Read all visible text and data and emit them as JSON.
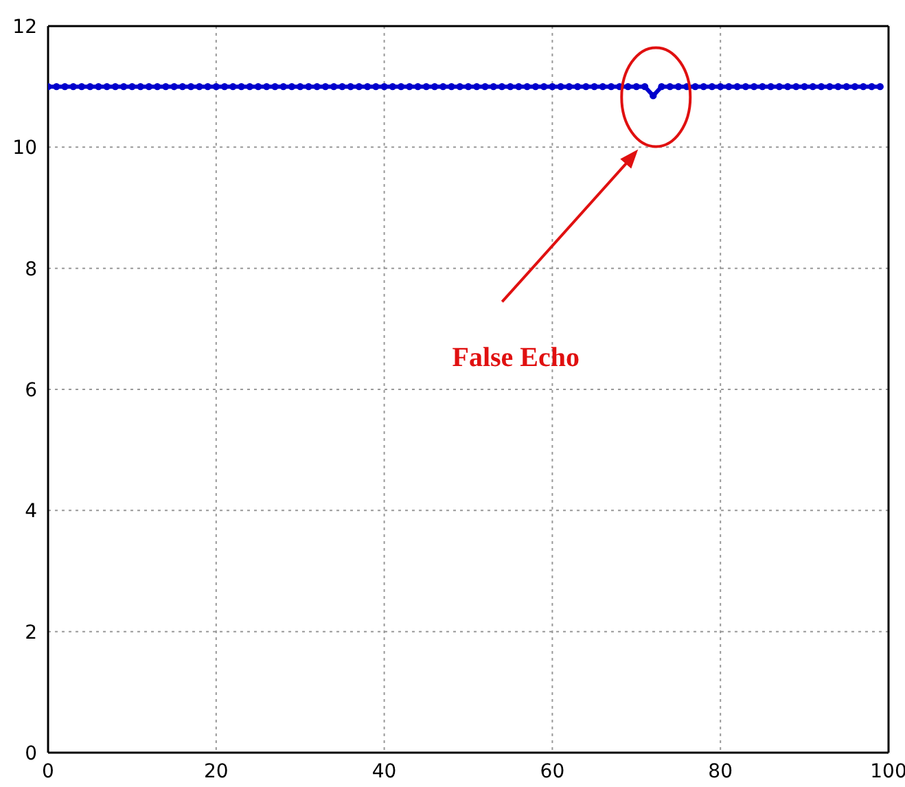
{
  "chart_data": {
    "type": "line",
    "x": [
      0,
      1,
      2,
      3,
      4,
      5,
      6,
      7,
      8,
      9,
      10,
      11,
      12,
      13,
      14,
      15,
      16,
      17,
      18,
      19,
      20,
      21,
      22,
      23,
      24,
      25,
      26,
      27,
      28,
      29,
      30,
      31,
      32,
      33,
      34,
      35,
      36,
      37,
      38,
      39,
      40,
      41,
      42,
      43,
      44,
      45,
      46,
      47,
      48,
      49,
      50,
      51,
      52,
      53,
      54,
      55,
      56,
      57,
      58,
      59,
      60,
      61,
      62,
      63,
      64,
      65,
      66,
      67,
      68,
      69,
      70,
      71,
      72,
      73,
      74,
      75,
      76,
      77,
      78,
      79,
      80,
      81,
      82,
      83,
      84,
      85,
      86,
      87,
      88,
      89,
      90,
      91,
      92,
      93,
      94,
      95,
      96,
      97,
      98,
      99
    ],
    "series": [
      {
        "color": "#0000cc",
        "values": [
          11,
          11,
          11,
          11,
          11,
          11,
          11,
          11,
          11,
          11,
          11,
          11,
          11,
          11,
          11,
          11,
          11,
          11,
          11,
          11,
          11,
          11,
          11,
          11,
          11,
          11,
          11,
          11,
          11,
          11,
          11,
          11,
          11,
          11,
          11,
          11,
          11,
          11,
          11,
          11,
          11,
          11,
          11,
          11,
          11,
          11,
          11,
          11,
          11,
          11,
          11,
          11,
          11,
          11,
          11,
          11,
          11,
          11,
          11,
          11,
          11,
          11,
          11,
          11,
          11,
          11,
          11,
          11,
          11,
          11,
          11,
          11,
          10.85,
          11,
          11,
          11,
          11,
          11,
          11,
          11,
          11,
          11,
          11,
          11,
          11,
          11,
          11,
          11,
          11,
          11,
          11,
          11,
          11,
          11,
          11,
          11,
          11,
          11,
          11,
          11
        ]
      }
    ],
    "xlim": [
      0,
      100
    ],
    "xticks": [
      0,
      20,
      40,
      60,
      80,
      100
    ],
    "ylim": [
      0,
      12
    ],
    "yticks": [
      0,
      2,
      4,
      6,
      8,
      10,
      12
    ],
    "grid": true,
    "marker": "circle",
    "line_style": "solid",
    "annotations": [
      "False Echo"
    ]
  }
}
